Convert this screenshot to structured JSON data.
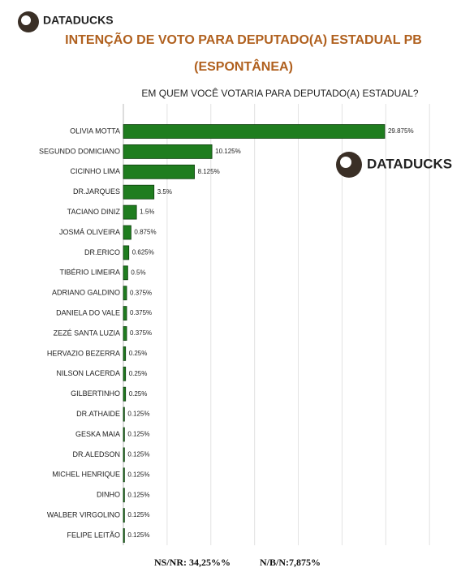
{
  "brand": {
    "name": "DATADUCKS"
  },
  "title_lines": [
    "INTENÇÃO DE VOTO PARA DEPUTADO(A) ESTADUAL PB",
    "(ESPONTÂNEA)"
  ],
  "chart_data": {
    "type": "bar",
    "orientation": "horizontal",
    "title": "EM QUEM VOCÊ VOTARIA PARA DEPUTADO(A) ESTADUAL?",
    "watermark": "DATADUCKS",
    "categories": [
      "OLIVIA MOTTA",
      "SEGUNDO DOMICIANO",
      "CICINHO LIMA",
      "DR.JARQUES",
      "TACIANO DINIZ",
      "JOSMÁ OLIVEIRA",
      "DR.ERICO",
      "TIBÉRIO LIMEIRA",
      "ADRIANO GALDINO",
      "DANIELA DO VALE",
      "ZEZÉ SANTA LUZIA",
      "HERVAZIO BEZERRA",
      "NILSON LACERDA",
      "GILBERTINHO",
      "DR.ATHAIDE",
      "GESKA MAIA",
      "DR.ALEDSON",
      "MICHEL HENRIQUE",
      "DINHO",
      "WALBER VIRGOLINO",
      "FELIPE LEITÃO"
    ],
    "values": [
      29.875,
      10.125,
      8.125,
      3.5,
      1.5,
      0.875,
      0.625,
      0.5,
      0.375,
      0.375,
      0.375,
      0.25,
      0.25,
      0.25,
      0.125,
      0.125,
      0.125,
      0.125,
      0.125,
      0.125,
      0.125
    ],
    "value_labels": [
      "29.875%",
      "10.125%",
      "8.125%",
      "3.5%",
      "1.5%",
      "0.875%",
      "0.625%",
      "0.5%",
      "0.375%",
      "0.375%",
      "0.375%",
      "0.25%",
      "0.25%",
      "0.25%",
      "0.125%",
      "0.125%",
      "0.125%",
      "0.125%",
      "0.125%",
      "0.125%",
      "0.125%"
    ],
    "color": "#1f7d1f",
    "xlim": [
      0,
      36
    ],
    "xticks": [
      0,
      5,
      10,
      15,
      20,
      25,
      30,
      35
    ],
    "grid": true
  },
  "footer": [
    "NS/NR: 34,25%%",
    "N/B/N:7,875%"
  ]
}
